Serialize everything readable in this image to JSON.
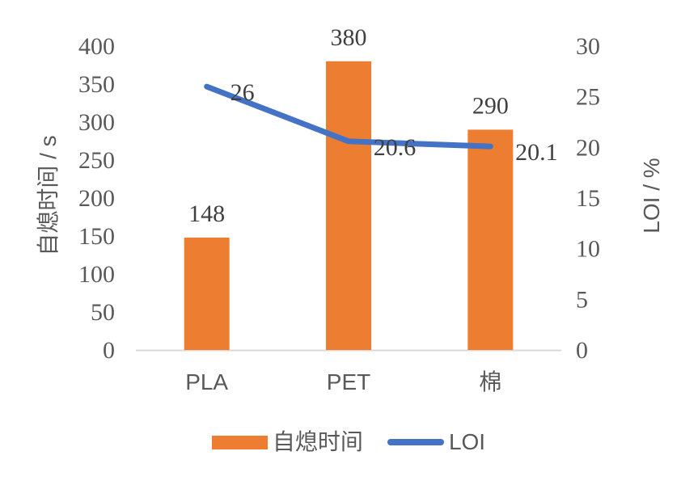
{
  "chart_data": {
    "type": "combo",
    "subtypes": [
      "bar",
      "line"
    ],
    "categories": [
      "PLA",
      "PET",
      "棉"
    ],
    "series": [
      {
        "name": "自熄时间",
        "type": "bar",
        "axis": "left",
        "values": [
          148,
          380,
          290
        ],
        "data_labels": [
          "148",
          "380",
          "290"
        ],
        "color": "#ED7D31"
      },
      {
        "name": "LOI",
        "type": "line",
        "axis": "right",
        "values": [
          26,
          20.6,
          20.1
        ],
        "data_labels": [
          "26",
          "20.6",
          "20.1"
        ],
        "color": "#4472C4"
      }
    ],
    "left_axis": {
      "title": "自熄时间 / s",
      "min": 0,
      "max": 400,
      "step": 50,
      "ticks": [
        "0",
        "50",
        "100",
        "150",
        "200",
        "250",
        "300",
        "350",
        "400"
      ]
    },
    "right_axis": {
      "title": "LOI / %",
      "min": 0,
      "max": 30,
      "step": 5,
      "ticks": [
        "0",
        "5",
        "10",
        "15",
        "20",
        "25",
        "30"
      ]
    },
    "legend": {
      "position": "bottom",
      "entries": [
        {
          "label": "自熄时间",
          "marker": "bar",
          "color": "#ED7D31"
        },
        {
          "label": "LOI",
          "marker": "line",
          "color": "#4472C4"
        }
      ]
    },
    "grid": false
  },
  "styles": {
    "tick_color": "#595959",
    "data_label_color": "#404040",
    "axis_line_color": "#D9D9D9",
    "background": "#FFFFFF"
  }
}
